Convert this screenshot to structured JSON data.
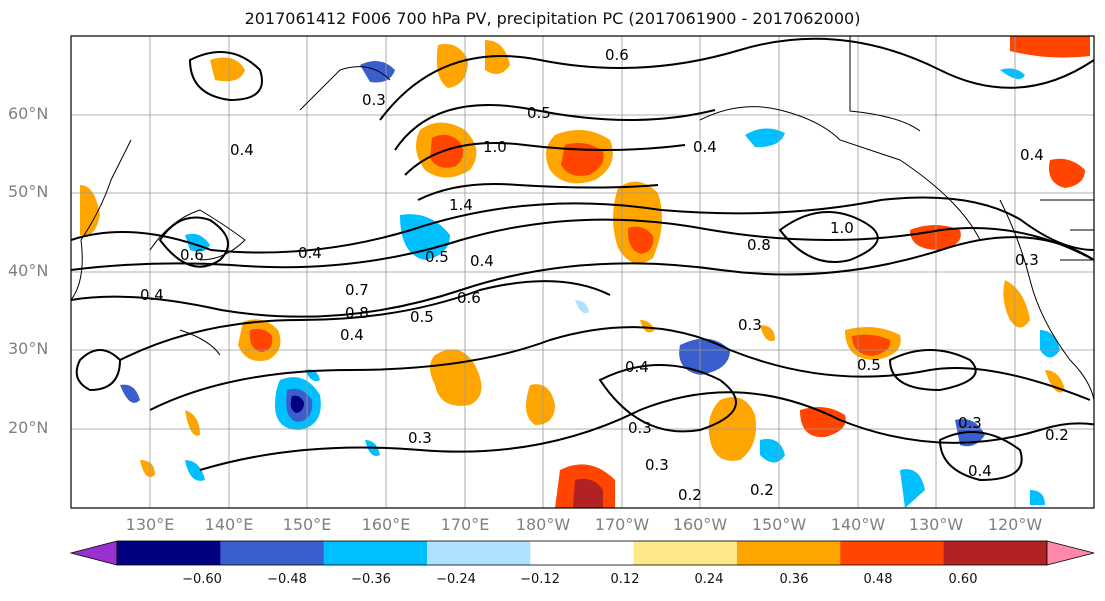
{
  "title": "2017061412 F006 700 hPa PV, precipitation PC (2017061900 - 2017062000)",
  "lat_labels": [
    "60°N",
    "50°N",
    "40°N",
    "30°N",
    "20°N"
  ],
  "lon_labels": [
    "130°E",
    "140°E",
    "150°E",
    "160°E",
    "170°E",
    "180°W",
    "170°W",
    "160°W",
    "150°W",
    "140°W",
    "130°W",
    "120°W"
  ],
  "colorbar": {
    "ticks": [
      "−0.60",
      "−0.48",
      "−0.36",
      "−0.24",
      "−0.12",
      "0.12",
      "0.24",
      "0.36",
      "0.48",
      "0.60"
    ],
    "colors": [
      "#9b30d0",
      "#000080",
      "#3a5fcd",
      "#00bfff",
      "#b0e2ff",
      "#ffffff",
      "#ffe88a",
      "#ffa500",
      "#ff4500",
      "#b22222",
      "#ff88aa"
    ]
  },
  "contour_labels": [
    "0.3",
    "0.4",
    "0.5",
    "0.6",
    "0.8",
    "1.0",
    "1.4",
    "0.2"
  ],
  "colors": {
    "contour": "#000000",
    "grid": "#999999",
    "coast": "#000000"
  }
}
